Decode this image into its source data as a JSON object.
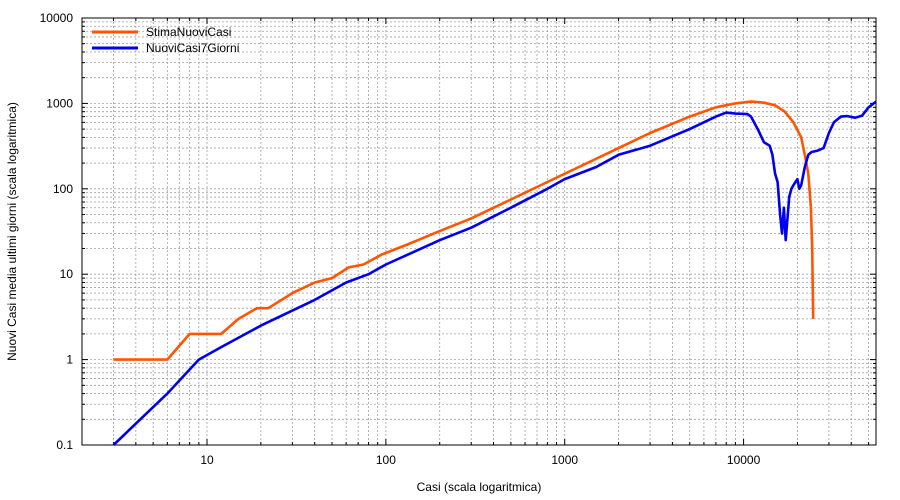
{
  "chart_data": {
    "type": "line",
    "title": "",
    "xlabel": "Casi (scala logaritmica)",
    "ylabel": "Nuovi Casi media ultimi giorni (scala logaritmica)",
    "xscale": "log",
    "yscale": "log",
    "xlim": [
      2,
      55000
    ],
    "ylim": [
      0.1,
      10000
    ],
    "grid": true,
    "legend_position": "top-left",
    "x_ticks": [
      {
        "value": 10,
        "label": "10"
      },
      {
        "value": 100,
        "label": "100"
      },
      {
        "value": 1000,
        "label": "1000"
      },
      {
        "value": 10000,
        "label": "10000"
      }
    ],
    "y_ticks": [
      {
        "value": 0.1,
        "label": "0.1"
      },
      {
        "value": 1,
        "label": "1"
      },
      {
        "value": 10,
        "label": "10"
      },
      {
        "value": 100,
        "label": "100"
      },
      {
        "value": 1000,
        "label": "1000"
      },
      {
        "value": 10000,
        "label": "10000"
      }
    ],
    "series": [
      {
        "name": "StimaNuoviCasi",
        "color": "#ff5500",
        "points": [
          [
            3,
            1
          ],
          [
            6,
            1
          ],
          [
            8,
            2
          ],
          [
            12,
            2
          ],
          [
            15,
            3
          ],
          [
            19,
            4
          ],
          [
            22,
            4
          ],
          [
            30,
            6
          ],
          [
            40,
            8
          ],
          [
            50,
            9
          ],
          [
            62,
            12
          ],
          [
            75,
            13
          ],
          [
            95,
            17
          ],
          [
            130,
            22
          ],
          [
            200,
            32
          ],
          [
            300,
            45
          ],
          [
            500,
            75
          ],
          [
            800,
            120
          ],
          [
            1200,
            180
          ],
          [
            2000,
            300
          ],
          [
            3000,
            450
          ],
          [
            5000,
            700
          ],
          [
            7000,
            900
          ],
          [
            9000,
            1000
          ],
          [
            11000,
            1050
          ],
          [
            13000,
            1020
          ],
          [
            15000,
            950
          ],
          [
            17000,
            800
          ],
          [
            19000,
            600
          ],
          [
            21000,
            400
          ],
          [
            22000,
            250
          ],
          [
            23000,
            150
          ],
          [
            23800,
            60
          ],
          [
            24200,
            20
          ],
          [
            24500,
            3
          ]
        ]
      },
      {
        "name": "NuoviCasi7Giorni",
        "color": "#0000ee",
        "points": [
          [
            3,
            0.1
          ],
          [
            6,
            0.4
          ],
          [
            9,
            1
          ],
          [
            12,
            1.4
          ],
          [
            20,
            2.5
          ],
          [
            40,
            5
          ],
          [
            60,
            8
          ],
          [
            80,
            10
          ],
          [
            100,
            13
          ],
          [
            200,
            25
          ],
          [
            300,
            35
          ],
          [
            500,
            60
          ],
          [
            800,
            100
          ],
          [
            1000,
            130
          ],
          [
            1500,
            180
          ],
          [
            2000,
            250
          ],
          [
            3000,
            320
          ],
          [
            5000,
            500
          ],
          [
            7000,
            700
          ],
          [
            8000,
            780
          ],
          [
            9000,
            760
          ],
          [
            10500,
            750
          ],
          [
            11000,
            700
          ],
          [
            12000,
            500
          ],
          [
            13000,
            350
          ],
          [
            14000,
            320
          ],
          [
            14500,
            250
          ],
          [
            15000,
            150
          ],
          [
            15500,
            120
          ],
          [
            16000,
            50
          ],
          [
            16400,
            30
          ],
          [
            16800,
            60
          ],
          [
            17200,
            25
          ],
          [
            17600,
            45
          ],
          [
            18000,
            80
          ],
          [
            18500,
            100
          ],
          [
            19000,
            110
          ],
          [
            19500,
            120
          ],
          [
            20000,
            130
          ],
          [
            20500,
            100
          ],
          [
            21000,
            110
          ],
          [
            21500,
            140
          ],
          [
            22000,
            180
          ],
          [
            23000,
            250
          ],
          [
            24000,
            270
          ],
          [
            26000,
            280
          ],
          [
            28000,
            300
          ],
          [
            30000,
            450
          ],
          [
            32000,
            600
          ],
          [
            35000,
            700
          ],
          [
            38000,
            710
          ],
          [
            42000,
            680
          ],
          [
            46000,
            720
          ],
          [
            50000,
            900
          ],
          [
            55000,
            1050
          ]
        ]
      }
    ]
  }
}
